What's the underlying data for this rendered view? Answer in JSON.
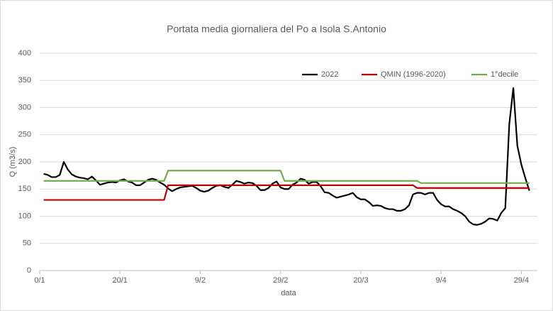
{
  "chart_data": {
    "type": "line",
    "title": "Portata media giornaliera del Po a Isola S.Antonio",
    "x_label": "data",
    "y_label": "Q (m3/s)",
    "xlim": [
      0,
      124
    ],
    "ylim": [
      0,
      400
    ],
    "xticks": [
      {
        "value": 0,
        "label": "0/1"
      },
      {
        "value": 20,
        "label": "20/1"
      },
      {
        "value": 40,
        "label": "9/2"
      },
      {
        "value": 60,
        "label": "29/2"
      },
      {
        "value": 80,
        "label": "20/3"
      },
      {
        "value": 100,
        "label": "9/4"
      },
      {
        "value": 120,
        "label": "29/4"
      }
    ],
    "yticks": [
      0,
      50,
      100,
      150,
      200,
      250,
      300,
      350,
      400
    ],
    "grid": true,
    "legend": "top",
    "series": [
      {
        "name": "2022",
        "color": "#000000",
        "x": [
          1,
          2,
          3,
          4,
          5,
          6,
          7,
          8,
          9,
          10,
          11,
          12,
          13,
          14,
          15,
          16,
          17,
          18,
          19,
          20,
          21,
          22,
          23,
          24,
          25,
          26,
          27,
          28,
          29,
          30,
          31,
          32,
          33,
          34,
          35,
          36,
          37,
          38,
          39,
          40,
          41,
          42,
          43,
          44,
          45,
          46,
          47,
          48,
          49,
          50,
          51,
          52,
          53,
          54,
          55,
          56,
          57,
          58,
          59,
          60,
          61,
          62,
          63,
          64,
          65,
          66,
          67,
          68,
          69,
          70,
          71,
          72,
          73,
          74,
          75,
          76,
          77,
          78,
          79,
          80,
          81,
          82,
          83,
          84,
          85,
          86,
          87,
          88,
          89,
          90,
          91,
          92,
          93,
          94,
          95,
          96,
          97,
          98,
          99,
          100,
          101,
          102,
          103,
          104,
          105,
          106,
          107,
          108,
          109,
          110,
          111,
          112,
          113,
          114,
          115,
          116,
          117,
          118,
          119,
          120,
          121,
          122
        ],
        "values": [
          178,
          176,
          172,
          172,
          176,
          200,
          186,
          177,
          173,
          171,
          170,
          168,
          173,
          166,
          158,
          160,
          162,
          163,
          162,
          166,
          168,
          164,
          162,
          157,
          157,
          162,
          167,
          169,
          167,
          162,
          158,
          151,
          146,
          150,
          153,
          154,
          155,
          156,
          152,
          147,
          145,
          147,
          152,
          156,
          157,
          154,
          152,
          158,
          165,
          163,
          160,
          162,
          161,
          156,
          148,
          148,
          152,
          160,
          164,
          153,
          150,
          150,
          158,
          162,
          169,
          167,
          160,
          163,
          163,
          155,
          144,
          143,
          138,
          134,
          136,
          138,
          140,
          143,
          135,
          131,
          131,
          126,
          119,
          120,
          119,
          115,
          113,
          113,
          110,
          110,
          113,
          120,
          140,
          143,
          143,
          140,
          143,
          143,
          130,
          122,
          118,
          118,
          113,
          110,
          106,
          100,
          90,
          85,
          84,
          86,
          90,
          96,
          95,
          92,
          106,
          115,
          270,
          336,
          230,
          195,
          170,
          147
        ]
      },
      {
        "name": "QMIN  (1996-2020)",
        "color": "#c00000",
        "x": [
          1,
          31,
          32,
          93,
          94,
          122
        ],
        "values": [
          130,
          130,
          157,
          157,
          152,
          152
        ]
      },
      {
        "name": "1°decile",
        "color": "#70ad47",
        "x": [
          1,
          31,
          32,
          60,
          61,
          94,
          95,
          122
        ],
        "values": [
          165,
          165,
          184,
          184,
          165,
          165,
          161,
          161
        ]
      }
    ]
  }
}
